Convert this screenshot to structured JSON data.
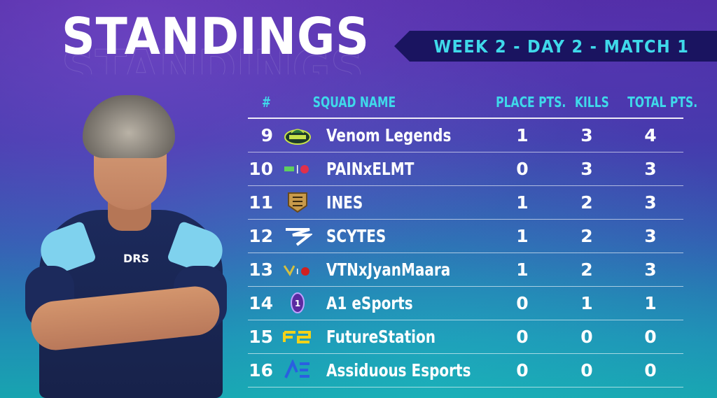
{
  "title": "STANDINGS",
  "match_label": "WEEK 2 - DAY 2 - MATCH 1",
  "columns": {
    "rank": "#",
    "squad": "SQUAD NAME",
    "place": "PLACE PTS.",
    "kills": "KILLS",
    "total": "TOTAL PTS."
  },
  "rows": [
    {
      "rank": "9",
      "name": "Venom Legends",
      "place": "1",
      "kills": "3",
      "total": "4",
      "logo": "venom-legends-logo"
    },
    {
      "rank": "10",
      "name": "PAINxELMT",
      "place": "0",
      "kills": "3",
      "total": "3",
      "logo": "painxelmt-logo"
    },
    {
      "rank": "11",
      "name": "INES",
      "place": "1",
      "kills": "2",
      "total": "3",
      "logo": "ines-logo"
    },
    {
      "rank": "12",
      "name": "SCYTES",
      "place": "1",
      "kills": "2",
      "total": "3",
      "logo": "scytes-logo"
    },
    {
      "rank": "13",
      "name": "VTNxJyanMaara",
      "place": "1",
      "kills": "2",
      "total": "3",
      "logo": "vtnxjyanmaara-logo"
    },
    {
      "rank": "14",
      "name": "A1 eSports",
      "place": "0",
      "kills": "1",
      "total": "1",
      "logo": "a1-esports-logo"
    },
    {
      "rank": "15",
      "name": "FutureStation",
      "place": "0",
      "kills": "0",
      "total": "0",
      "logo": "futurestation-logo"
    },
    {
      "rank": "16",
      "name": "Assiduous Esports",
      "place": "0",
      "kills": "0",
      "total": "0",
      "logo": "assiduous-esports-logo"
    }
  ],
  "jersey_text": "DRS",
  "colors": {
    "accent": "#3fd9ea",
    "banner": "#1a1460",
    "text": "#ffffff"
  }
}
